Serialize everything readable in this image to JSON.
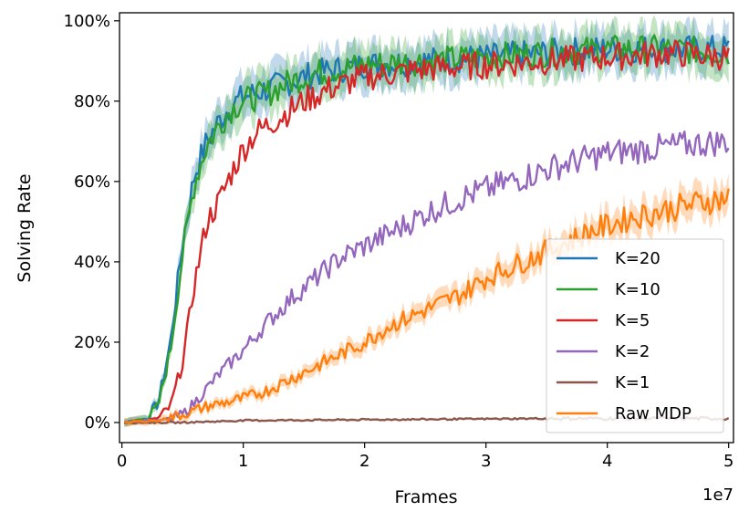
{
  "chart_data": {
    "type": "line",
    "title": "",
    "xlabel": "Frames",
    "ylabel": "Solving Rate",
    "x_offset_label": "1e7",
    "xlim": [
      -0.02,
      5.04
    ],
    "ylim": [
      -0.05,
      1.02
    ],
    "x_ticks": [
      0,
      1,
      2,
      3,
      4,
      5
    ],
    "x_tick_labels": [
      "0",
      "1",
      "2",
      "3",
      "4",
      "5"
    ],
    "y_ticks": [
      0,
      0.2,
      0.4,
      0.6,
      0.8,
      1.0
    ],
    "y_tick_labels": [
      "0%",
      "20%",
      "40%",
      "60%",
      "80%",
      "100%"
    ],
    "grid": false,
    "legend_position": "lower-right",
    "series": [
      {
        "name": "K=20",
        "color": "#1f77b4",
        "band": true,
        "points": [
          [
            0.02,
            0.0
          ],
          [
            0.2,
            0.01
          ],
          [
            0.3,
            0.05
          ],
          [
            0.4,
            0.2
          ],
          [
            0.5,
            0.45
          ],
          [
            0.6,
            0.62
          ],
          [
            0.7,
            0.7
          ],
          [
            0.8,
            0.75
          ],
          [
            0.9,
            0.79
          ],
          [
            1.0,
            0.81
          ],
          [
            1.2,
            0.83
          ],
          [
            1.4,
            0.85
          ],
          [
            1.6,
            0.87
          ],
          [
            1.8,
            0.88
          ],
          [
            2.0,
            0.89
          ],
          [
            2.5,
            0.9
          ],
          [
            3.0,
            0.91
          ],
          [
            3.5,
            0.92
          ],
          [
            4.0,
            0.93
          ],
          [
            4.5,
            0.93
          ],
          [
            5.0,
            0.93
          ]
        ]
      },
      {
        "name": "K=10",
        "color": "#2ca02c",
        "band": true,
        "points": [
          [
            0.02,
            0.0
          ],
          [
            0.2,
            0.01
          ],
          [
            0.3,
            0.04
          ],
          [
            0.4,
            0.18
          ],
          [
            0.5,
            0.42
          ],
          [
            0.6,
            0.6
          ],
          [
            0.7,
            0.69
          ],
          [
            0.8,
            0.74
          ],
          [
            0.9,
            0.78
          ],
          [
            1.0,
            0.8
          ],
          [
            1.2,
            0.82
          ],
          [
            1.4,
            0.85
          ],
          [
            1.6,
            0.87
          ],
          [
            1.8,
            0.88
          ],
          [
            2.0,
            0.89
          ],
          [
            2.5,
            0.9
          ],
          [
            3.0,
            0.91
          ],
          [
            3.5,
            0.92
          ],
          [
            4.0,
            0.93
          ],
          [
            4.5,
            0.93
          ],
          [
            5.0,
            0.92
          ]
        ]
      },
      {
        "name": "K=5",
        "color": "#d62728",
        "band": false,
        "points": [
          [
            0.02,
            0.0
          ],
          [
            0.3,
            0.01
          ],
          [
            0.4,
            0.04
          ],
          [
            0.5,
            0.15
          ],
          [
            0.6,
            0.35
          ],
          [
            0.7,
            0.5
          ],
          [
            0.8,
            0.55
          ],
          [
            0.9,
            0.62
          ],
          [
            1.0,
            0.68
          ],
          [
            1.1,
            0.72
          ],
          [
            1.3,
            0.76
          ],
          [
            1.5,
            0.8
          ],
          [
            1.7,
            0.83
          ],
          [
            2.0,
            0.86
          ],
          [
            2.5,
            0.88
          ],
          [
            3.0,
            0.89
          ],
          [
            3.5,
            0.9
          ],
          [
            4.0,
            0.91
          ],
          [
            4.5,
            0.92
          ],
          [
            5.0,
            0.91
          ]
        ]
      },
      {
        "name": "K=2",
        "color": "#9467bd",
        "band": false,
        "points": [
          [
            0.02,
            0.0
          ],
          [
            0.4,
            0.01
          ],
          [
            0.5,
            0.02
          ],
          [
            0.6,
            0.05
          ],
          [
            0.8,
            0.12
          ],
          [
            1.0,
            0.18
          ],
          [
            1.2,
            0.25
          ],
          [
            1.4,
            0.31
          ],
          [
            1.6,
            0.36
          ],
          [
            1.8,
            0.41
          ],
          [
            2.0,
            0.44
          ],
          [
            2.2,
            0.47
          ],
          [
            2.5,
            0.52
          ],
          [
            2.8,
            0.56
          ],
          [
            3.0,
            0.58
          ],
          [
            3.3,
            0.61
          ],
          [
            3.6,
            0.64
          ],
          [
            4.0,
            0.67
          ],
          [
            4.3,
            0.68
          ],
          [
            4.6,
            0.69
          ],
          [
            5.0,
            0.7
          ]
        ]
      },
      {
        "name": "K=1",
        "color": "#8c564b",
        "band": false,
        "points": [
          [
            0.02,
            0.0
          ],
          [
            0.5,
            0.0
          ],
          [
            1.0,
            0.005
          ],
          [
            1.5,
            0.006
          ],
          [
            2.0,
            0.007
          ],
          [
            2.5,
            0.008
          ],
          [
            3.0,
            0.009
          ],
          [
            3.5,
            0.01
          ],
          [
            4.0,
            0.01
          ],
          [
            4.5,
            0.01
          ],
          [
            5.0,
            0.01
          ]
        ]
      },
      {
        "name": "Raw MDP",
        "color": "#ff7f0e",
        "band": true,
        "points": [
          [
            0.02,
            0.0
          ],
          [
            0.3,
            0.005
          ],
          [
            0.5,
            0.02
          ],
          [
            0.7,
            0.04
          ],
          [
            1.0,
            0.06
          ],
          [
            1.2,
            0.08
          ],
          [
            1.4,
            0.11
          ],
          [
            1.6,
            0.14
          ],
          [
            1.8,
            0.17
          ],
          [
            2.0,
            0.2
          ],
          [
            2.2,
            0.24
          ],
          [
            2.5,
            0.28
          ],
          [
            2.8,
            0.32
          ],
          [
            3.0,
            0.36
          ],
          [
            3.3,
            0.4
          ],
          [
            3.6,
            0.44
          ],
          [
            3.9,
            0.48
          ],
          [
            4.2,
            0.51
          ],
          [
            4.5,
            0.53
          ],
          [
            4.8,
            0.55
          ],
          [
            5.0,
            0.56
          ]
        ]
      }
    ]
  }
}
